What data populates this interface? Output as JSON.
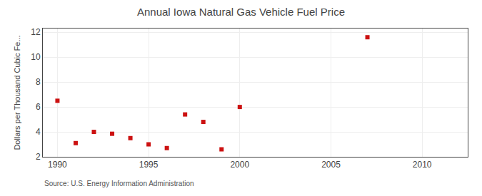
{
  "chart_data": {
    "type": "scatter",
    "title": "Annual Iowa Natural Gas Vehicle Fuel Price",
    "ylabel": "Dollars per Thousand Cubic Fe...",
    "annotations": [
      "Source: U.S. Energy Information Administration"
    ],
    "x": [
      1990,
      1991,
      1992,
      1993,
      1994,
      1995,
      1996,
      1997,
      1998,
      1999,
      2000,
      2007
    ],
    "values": [
      6.5,
      3.1,
      4.0,
      3.85,
      3.5,
      3.0,
      2.7,
      5.4,
      4.8,
      2.6,
      6.0,
      11.6
    ],
    "color": "#cc1111",
    "marker": "square",
    "xlim": [
      1989.2,
      2012.5
    ],
    "xticks": [
      1990,
      1995,
      2000,
      2005,
      2010
    ],
    "ylim": [
      2,
      12.3
    ],
    "yticks": [
      2,
      4,
      6,
      8,
      10,
      12
    ],
    "grid": true
  }
}
